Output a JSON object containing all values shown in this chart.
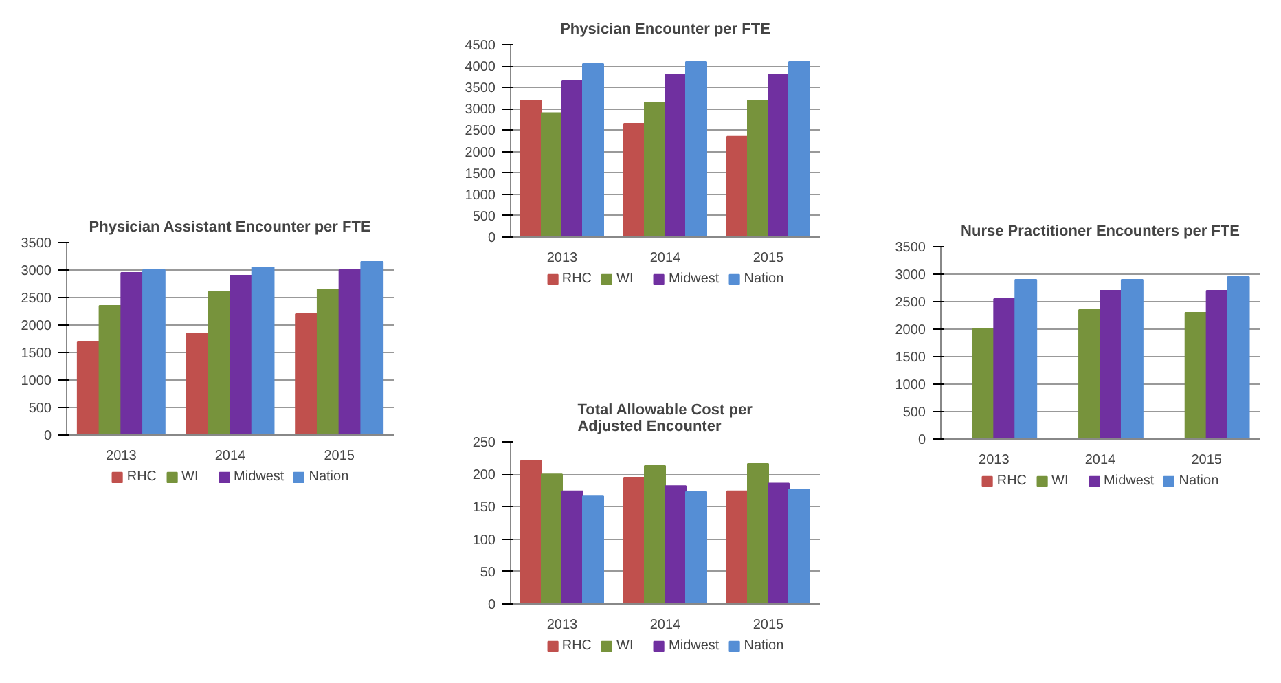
{
  "chart_data": [
    {
      "type": "bar",
      "title": "Physician Assistant Encounter per FTE",
      "categories": [
        "2013",
        "2014",
        "2015"
      ],
      "ylim": [
        0,
        3500
      ],
      "yticks": [
        0,
        500,
        1000,
        1500,
        2000,
        2500,
        3000,
        3500
      ],
      "grid": "y",
      "legend": "bottom",
      "series": [
        {
          "name": "RHC",
          "color": "#c0504d",
          "values": [
            1700,
            1850,
            2200
          ]
        },
        {
          "name": "WI",
          "color": "#77933c",
          "values": [
            2350,
            2600,
            2650
          ]
        },
        {
          "name": "Midwest",
          "color": "#7030a0",
          "values": [
            2950,
            2900,
            3000
          ]
        },
        {
          "name": "Nation",
          "color": "#558ed5",
          "values": [
            3000,
            3050,
            3150
          ]
        }
      ]
    },
    {
      "type": "bar",
      "title": "Physician Encounter per FTE",
      "categories": [
        "2013",
        "2014",
        "2015"
      ],
      "ylim": [
        0,
        4500
      ],
      "yticks": [
        0,
        500,
        1000,
        1500,
        2000,
        2500,
        3000,
        3500,
        4000,
        4500
      ],
      "grid": "y",
      "legend": "bottom",
      "series": [
        {
          "name": "RHC",
          "color": "#c0504d",
          "values": [
            3200,
            2650,
            2350
          ]
        },
        {
          "name": "WI",
          "color": "#77933c",
          "values": [
            2900,
            3150,
            3200
          ]
        },
        {
          "name": "Midwest",
          "color": "#7030a0",
          "values": [
            3650,
            3800,
            3800
          ]
        },
        {
          "name": "Nation",
          "color": "#558ed5",
          "values": [
            4050,
            4100,
            4100
          ]
        }
      ]
    },
    {
      "type": "bar",
      "title": "Total Allowable Cost per\nAdjusted Encounter",
      "categories": [
        "2013",
        "2014",
        "2015"
      ],
      "ylim": [
        0,
        250
      ],
      "yticks": [
        0,
        50,
        100,
        150,
        200,
        250
      ],
      "grid": "y",
      "legend": "bottom",
      "series": [
        {
          "name": "RHC",
          "color": "#c0504d",
          "values": [
            221,
            195,
            174
          ]
        },
        {
          "name": "WI",
          "color": "#77933c",
          "values": [
            200,
            213,
            216
          ]
        },
        {
          "name": "Midwest",
          "color": "#7030a0",
          "values": [
            174,
            182,
            186
          ]
        },
        {
          "name": "Nation",
          "color": "#558ed5",
          "values": [
            166,
            173,
            177
          ]
        }
      ]
    },
    {
      "type": "bar",
      "title": "Nurse Practitioner Encounters per FTE",
      "categories": [
        "2013",
        "2014",
        "2015"
      ],
      "ylim": [
        0,
        3500
      ],
      "yticks": [
        0,
        500,
        1000,
        1500,
        2000,
        2500,
        3000,
        3500
      ],
      "grid": "y",
      "legend": "bottom",
      "series": [
        {
          "name": "RHC",
          "color": "#c0504d",
          "values": [
            null,
            null,
            null
          ]
        },
        {
          "name": "WI",
          "color": "#77933c",
          "values": [
            2000,
            2350,
            2300
          ]
        },
        {
          "name": "Midwest",
          "color": "#7030a0",
          "values": [
            2550,
            2700,
            2700
          ]
        },
        {
          "name": "Nation",
          "color": "#558ed5",
          "values": [
            2900,
            2900,
            2950
          ]
        }
      ]
    }
  ]
}
